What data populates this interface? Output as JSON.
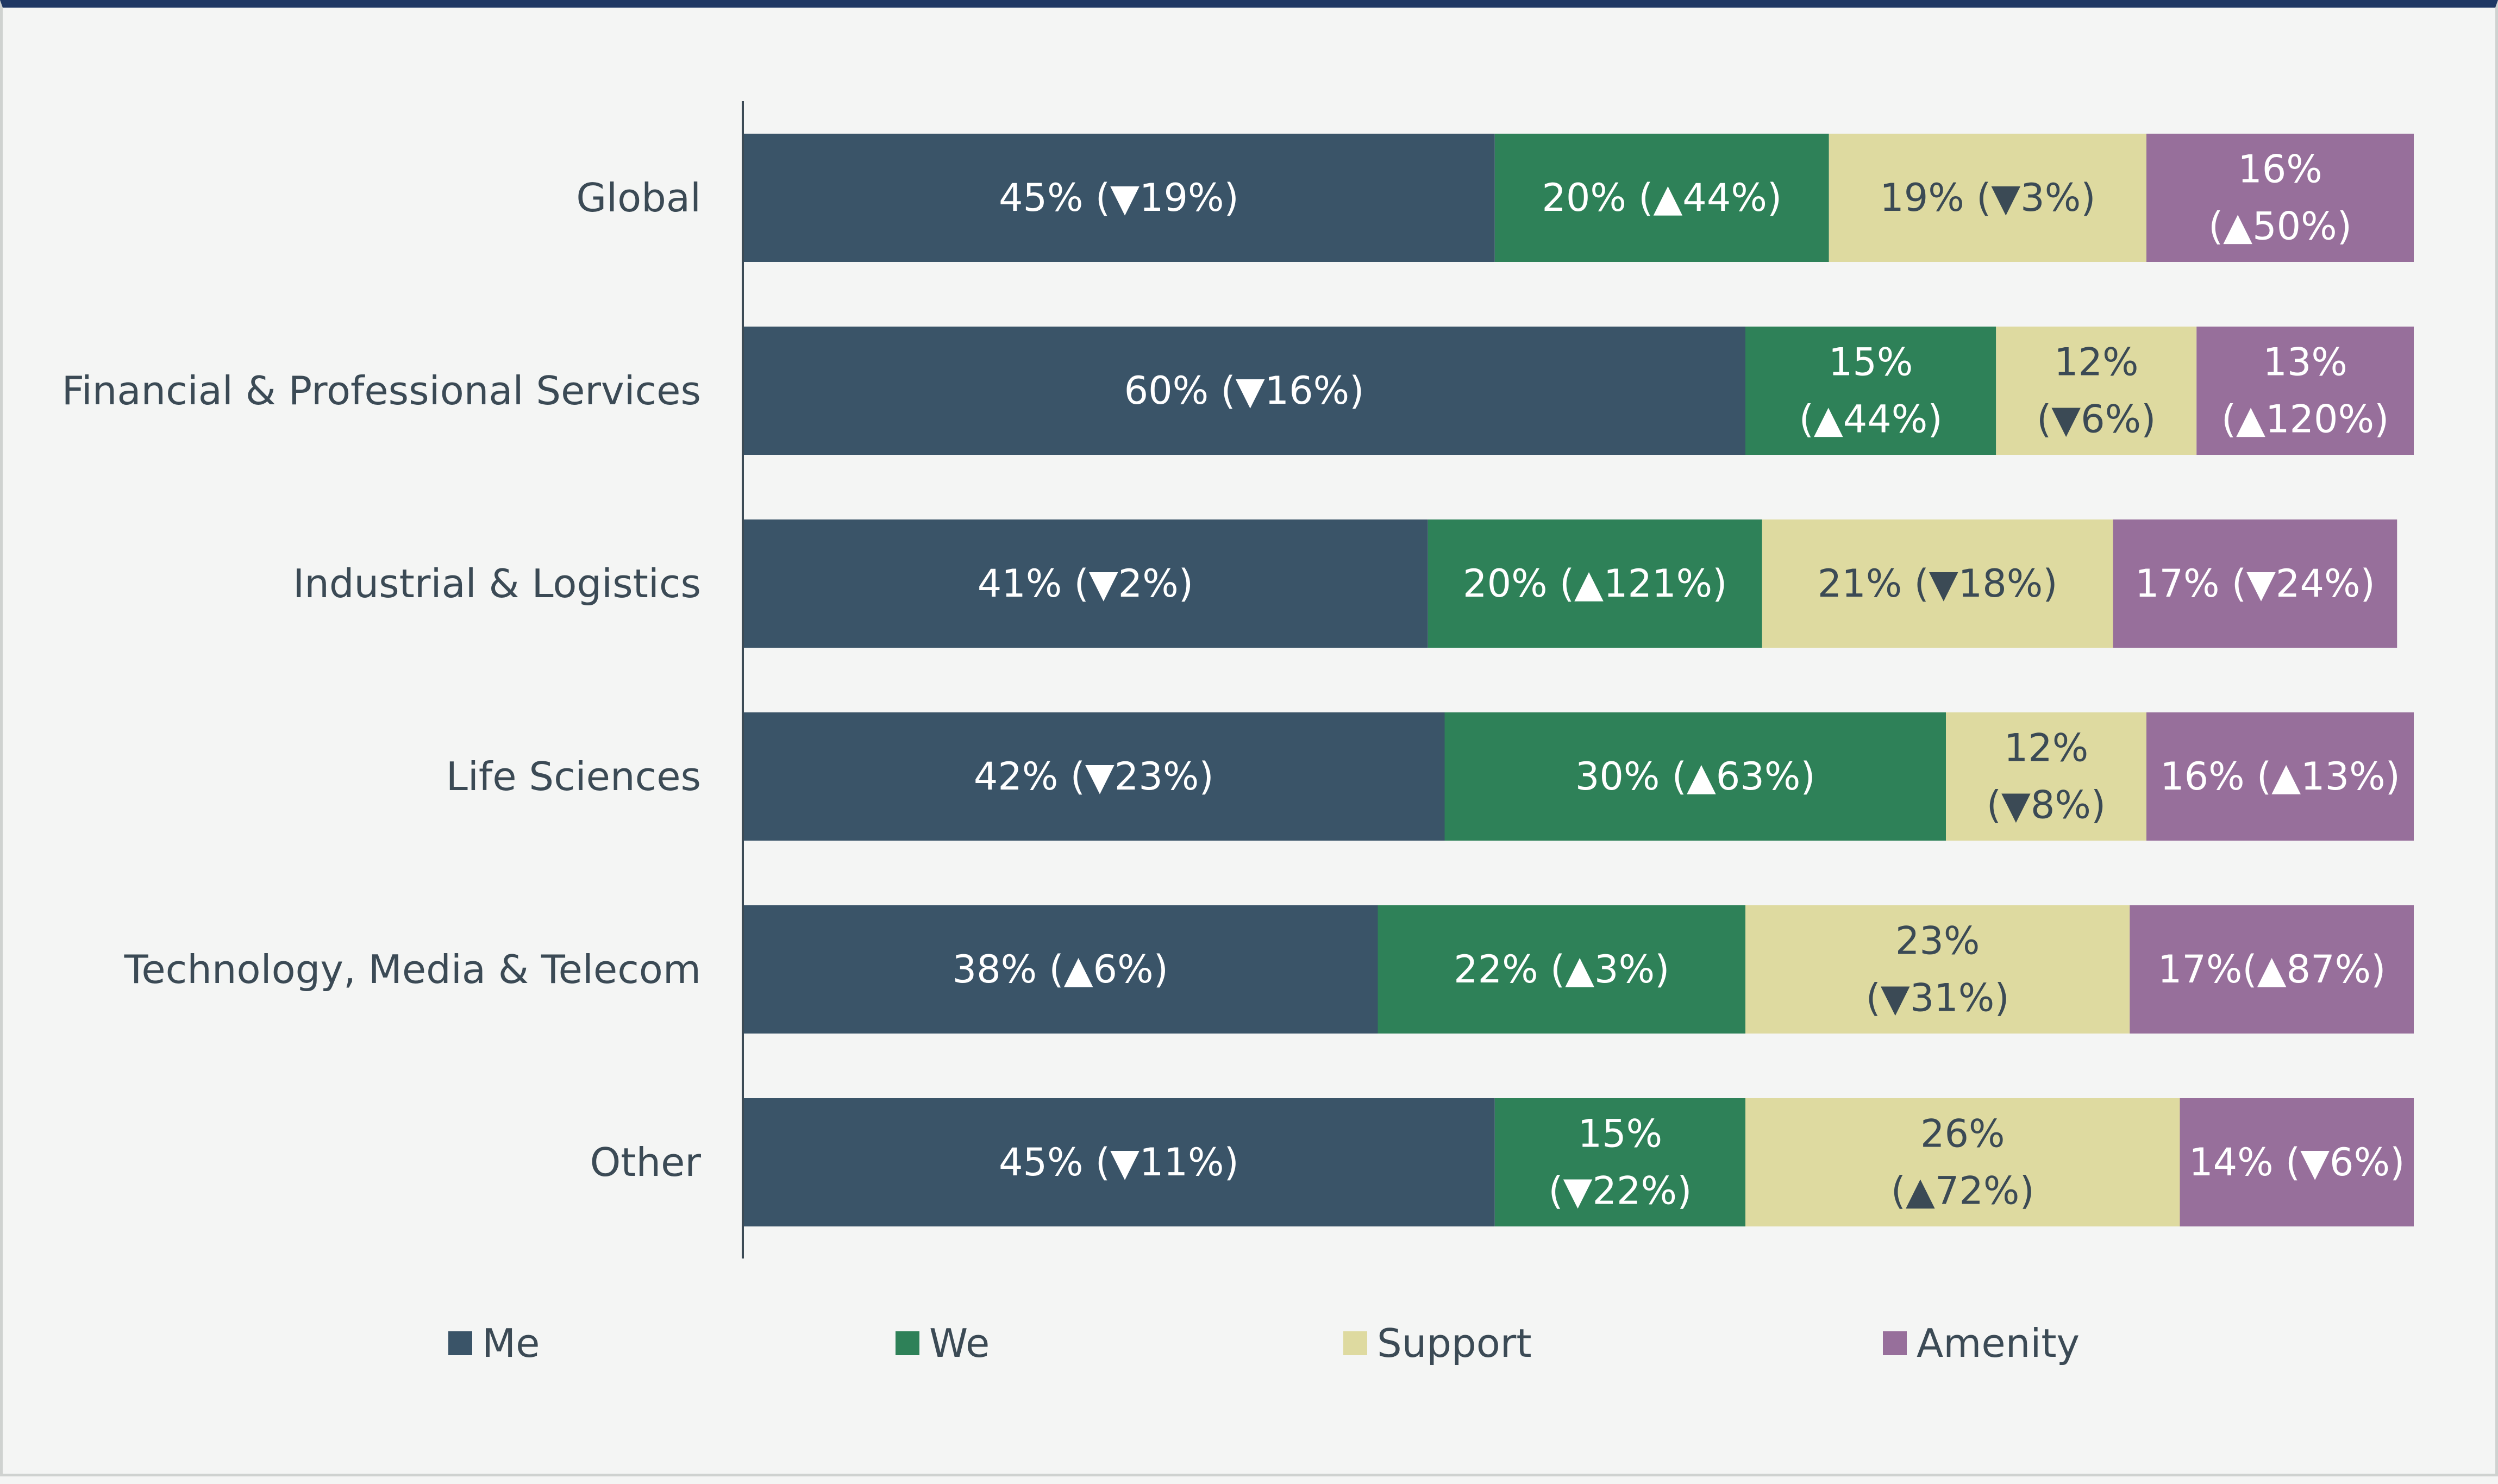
{
  "chart_data": {
    "type": "bar",
    "orientation": "horizontal",
    "stacked": true,
    "title": "",
    "xlabel": "",
    "ylabel": "",
    "legend_position": "bottom",
    "grid": false,
    "categories": [
      "Global",
      "Financial & Professional Services",
      "Industrial & Logistics",
      "Life Sciences",
      "Technology, Media & Telecom",
      "Other"
    ],
    "series": [
      {
        "name": "Me",
        "color": "#3a5468",
        "text_color": "#ffffff",
        "values": [
          45,
          60,
          41,
          42,
          38,
          45
        ],
        "labels": [
          [
            "45% (▼19%)"
          ],
          [
            "60% (▼16%)"
          ],
          [
            "41% (▼2%)"
          ],
          [
            "42% (▼23%)"
          ],
          [
            "38% (▲6%)"
          ],
          [
            "45% (▼11%)"
          ]
        ]
      },
      {
        "name": "We",
        "color": "#2e8158",
        "text_color": "#ffffff",
        "values": [
          20,
          15,
          20,
          30,
          22,
          15
        ],
        "labels": [
          [
            "20% (▲44%)"
          ],
          [
            "15%",
            "(▲44%)"
          ],
          [
            "20% (▲121%)"
          ],
          [
            "30% (▲63%)"
          ],
          [
            "22% (▲3%)"
          ],
          [
            "15%",
            "(▼22%)"
          ]
        ]
      },
      {
        "name": "Support",
        "color": "#dedaa0",
        "text_color": "#3b4a55",
        "values": [
          19,
          12,
          21,
          12,
          23,
          26
        ],
        "labels": [
          [
            "19% (▼3%)"
          ],
          [
            "12%",
            "(▼6%)"
          ],
          [
            "21% (▼18%)"
          ],
          [
            "12%",
            "(▼8%)"
          ],
          [
            "23%",
            "(▼31%)"
          ],
          [
            "26%",
            "(▲72%)"
          ]
        ]
      },
      {
        "name": "Amenity",
        "color": "#976f9b",
        "text_color": "#ffffff",
        "values": [
          16,
          13,
          17,
          16,
          17,
          14
        ],
        "labels": [
          [
            "16%",
            "(▲50%)"
          ],
          [
            "13%",
            "(▲120%)"
          ],
          [
            "17% (▼24%)"
          ],
          [
            "16% (▲13%)"
          ],
          [
            "17%(▲87%)"
          ],
          [
            "14% (▼6%)"
          ]
        ]
      }
    ]
  }
}
